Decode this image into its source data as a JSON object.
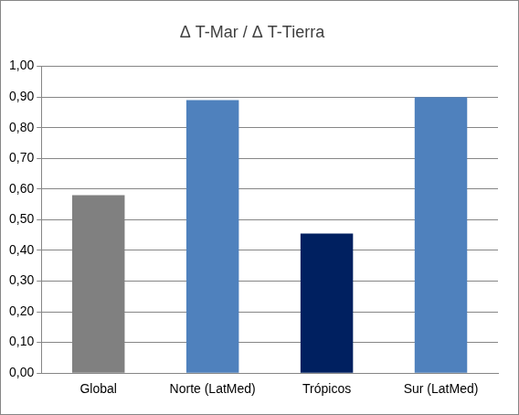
{
  "chart_data": {
    "type": "bar",
    "title": "Δ T-Mar / Δ T-Tierra",
    "categories": [
      "Global",
      "Norte (LatMed)",
      "Trópicos",
      "Sur (LatMed)"
    ],
    "values": [
      0.58,
      0.89,
      0.455,
      0.9
    ],
    "colors": [
      "#808080",
      "#4f81bd",
      "#002060",
      "#4f81bd"
    ],
    "ylim": [
      0,
      1.0
    ],
    "yticks": [
      {
        "value": 0,
        "label": "0,00"
      },
      {
        "value": 0.1,
        "label": "0,10"
      },
      {
        "value": 0.2,
        "label": "0,20"
      },
      {
        "value": 0.3,
        "label": "0,30"
      },
      {
        "value": 0.4,
        "label": "0,40"
      },
      {
        "value": 0.5,
        "label": "0,50"
      },
      {
        "value": 0.6,
        "label": "0,60"
      },
      {
        "value": 0.7,
        "label": "0,70"
      },
      {
        "value": 0.8,
        "label": "0,80"
      },
      {
        "value": 0.9,
        "label": "0,90"
      },
      {
        "value": 1.0,
        "label": "1,00"
      }
    ],
    "grid": true
  }
}
